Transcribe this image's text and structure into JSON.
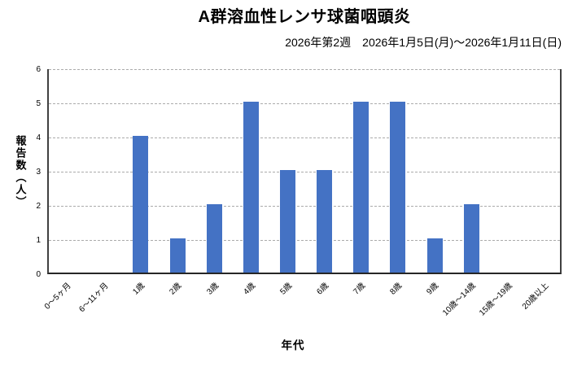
{
  "chart_data": {
    "type": "bar",
    "title": "A群溶血性レンサ球菌咽頭炎",
    "subtitle": "2026年第2週　2026年1月5日(月)～2026年1月11日(日)",
    "categories": [
      "0～5ヶ月",
      "6～11ヶ月",
      "1歳",
      "2歳",
      "3歳",
      "4歳",
      "5歳",
      "6歳",
      "7歳",
      "8歳",
      "9歳",
      "10歳～14歳",
      "15歳～19歳",
      "20歳以上"
    ],
    "values": [
      0,
      0,
      4,
      1,
      2,
      5,
      3,
      3,
      5,
      5,
      1,
      2,
      0,
      0
    ],
    "xlabel": "年代",
    "ylabel": "報告数（人）",
    "ylim": [
      0,
      6
    ],
    "yticks": [
      0,
      1,
      2,
      3,
      4,
      5,
      6
    ],
    "grid": "horizontal-dashed",
    "legend": "none",
    "bar_color": "#4472C4",
    "gridline_color": "#ababab",
    "axis_color": "#404040"
  }
}
